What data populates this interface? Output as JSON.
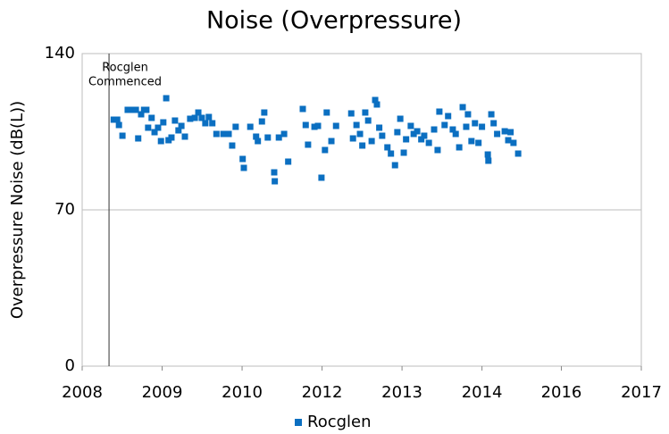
{
  "chart_data": {
    "type": "scatter",
    "title": "Noise (Overpressure)",
    "ylabel": "Overpressure Noise (dB(L))",
    "xlim": [
      2008,
      2017.58
    ],
    "xticks": [
      2008,
      {
        "value": 2009.37,
        "label": "2009"
      },
      {
        "value": 2010.74,
        "label": "2010"
      },
      {
        "value": 2012.11,
        "label": "2012"
      },
      {
        "value": 2013.48,
        "label": "2013"
      },
      {
        "value": 2014.85,
        "label": "2014"
      },
      {
        "value": 2016.21,
        "label": "2016"
      },
      {
        "value": 2017.58,
        "label": "2017"
      }
    ],
    "ylim": [
      0,
      140
    ],
    "yticks": [
      0,
      70,
      140
    ],
    "grid": true,
    "legend": "bottom",
    "annotation": {
      "x": 2008.46,
      "text": [
        "Rocglen",
        "Commenced"
      ]
    },
    "series": [
      {
        "name": "Rocglen",
        "color": "#0b6fc1",
        "x": [
          2008.54,
          2008.6,
          2008.63,
          2008.69,
          2008.78,
          2008.86,
          2008.92,
          2008.96,
          2009.01,
          2009.06,
          2009.1,
          2009.13,
          2009.19,
          2009.24,
          2009.3,
          2009.35,
          2009.39,
          2009.44,
          2009.48,
          2009.53,
          2009.59,
          2009.65,
          2009.7,
          2009.76,
          2009.85,
          2009.93,
          2009.99,
          2010.05,
          2010.11,
          2010.17,
          2010.23,
          2010.3,
          2010.42,
          2010.51,
          2010.57,
          2010.63,
          2010.75,
          2010.77,
          2010.88,
          2010.98,
          2011.01,
          2011.08,
          2011.12,
          2011.18,
          2011.29,
          2011.3,
          2011.37,
          2011.46,
          2011.53,
          2011.78,
          2011.83,
          2011.87,
          2011.98,
          2012.04,
          2012.1,
          2012.16,
          2012.19,
          2012.27,
          2012.35,
          2012.61,
          2012.64,
          2012.7,
          2012.76,
          2012.8,
          2012.85,
          2012.9,
          2012.96,
          2013.02,
          2013.05,
          2013.09,
          2013.14,
          2013.23,
          2013.29,
          2013.36,
          2013.4,
          2013.45,
          2013.51,
          2013.55,
          2013.63,
          2013.68,
          2013.74,
          2013.81,
          2013.86,
          2013.94,
          2014.03,
          2014.09,
          2014.12,
          2014.21,
          2014.27,
          2014.35,
          2014.4,
          2014.46,
          2014.52,
          2014.58,
          2014.61,
          2014.67,
          2014.73,
          2014.79,
          2014.85,
          2014.95,
          2014.96,
          2015.01,
          2015.05,
          2015.11,
          2015.24,
          2015.3,
          2015.34,
          2015.39,
          2015.47
        ],
        "values": [
          110.4,
          110.4,
          108,
          103.2,
          114.8,
          114.8,
          114.8,
          102,
          112.8,
          114.8,
          114.8,
          106.8,
          111.2,
          104.8,
          106.8,
          100.8,
          109.2,
          120,
          101.2,
          102.4,
          110,
          105.6,
          107.6,
          102.8,
          110.8,
          111.2,
          113.6,
          111.2,
          108.8,
          111.6,
          108.8,
          104,
          104,
          104,
          98.8,
          107.2,
          92.8,
          88.8,
          107.2,
          102.8,
          100.8,
          109.6,
          113.6,
          102.4,
          86.8,
          82.8,
          102.4,
          104,
          91.6,
          115.2,
          108,
          99.2,
          107.2,
          107.6,
          84.4,
          96.8,
          113.6,
          100.8,
          107.6,
          113.2,
          102,
          108,
          104,
          98.8,
          113.6,
          110,
          100.8,
          119.2,
          117.2,
          106.8,
          103.2,
          98,
          95.2,
          90,
          104.8,
          110.8,
          95.6,
          101.6,
          107.6,
          104,
          105.2,
          101.6,
          103.2,
          100,
          106,
          96.8,
          114,
          108,
          112,
          106,
          104,
          98,
          116,
          107.2,
          112.8,
          100.8,
          108.8,
          100,
          107.2,
          94.8,
          92,
          112.8,
          108.8,
          104,
          105.2,
          101.2,
          104.8,
          100,
          95.2
        ]
      }
    ]
  }
}
